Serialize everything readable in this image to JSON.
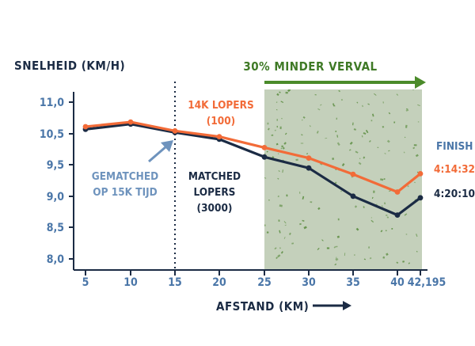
{
  "chart_data": {
    "type": "line",
    "ylabel": "SNELHEID (KM/H)",
    "xlabel": "AFSTAND (KM)",
    "x": [
      5,
      10,
      15,
      20,
      25,
      30,
      35,
      40,
      42.195
    ],
    "x_tick_labels": [
      "5",
      "10",
      "15",
      "20",
      "25",
      "30",
      "35",
      "40",
      "42,195"
    ],
    "y_tick_labels": [
      "11,0",
      "10,5",
      "9,5",
      "9,0",
      "8,5",
      "8,0"
    ],
    "y_axis_note": "tick labels printed as shown (10,0 label absent)",
    "ylim": [
      8.0,
      11.0
    ],
    "xlim": [
      3.5,
      42.195
    ],
    "grid": false,
    "series": [
      {
        "name": "14K LOPERS (100)",
        "color": "#f26b38",
        "values": [
          10.53,
          10.62,
          10.45,
          10.34,
          10.13,
          9.93,
          9.62,
          9.28,
          9.63
        ],
        "finish_label": "4:14:32"
      },
      {
        "name": "MATCHED LOPERS (3000)",
        "color": "#1b2b44",
        "values": [
          10.48,
          10.58,
          10.42,
          10.29,
          9.95,
          9.74,
          9.2,
          8.84,
          9.17
        ],
        "finish_label": "4:20:10"
      }
    ],
    "annotations": {
      "shaded_region": {
        "from": 25,
        "to": 42.195,
        "label": "30% MINDER VERVAL",
        "color": "#c4d0bb",
        "label_color": "#3f7a26"
      },
      "vertical_dotted_line_at": 15,
      "matched_label": "GEMATCHED OP 15K TIJD",
      "matched_label_lines": [
        "GEMATCHED",
        "OP 15K TIJD"
      ],
      "orange_label_lines": [
        "14K LOPERS",
        "(100)"
      ],
      "navy_label_lines": [
        "MATCHED",
        "LOPERS",
        "(3000)"
      ],
      "finish_label": "FINISH"
    }
  },
  "colors": {
    "axis": "#1b2b44",
    "tick_label": "#4a76a8",
    "orange": "#f26b38",
    "navy": "#1b2b44",
    "green_text": "#3f7a26",
    "green_arrow": "#4b8b2a",
    "shade": "#c4d0bb",
    "speckle": "#5f8f45",
    "matched_annotation": "#6e93bd"
  }
}
